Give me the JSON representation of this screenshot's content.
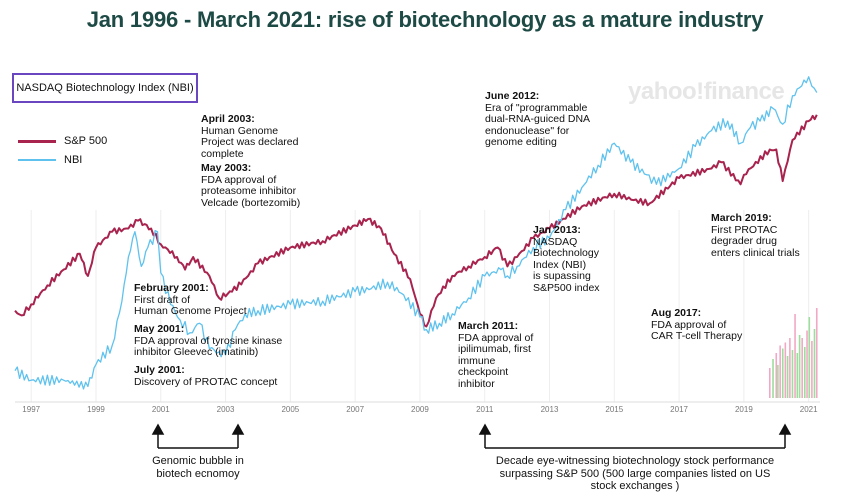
{
  "title": "Jan 1996 - March 2021: rise of biotechnology as a mature industry",
  "index_box": "NASDAQ Biotechnology Index (NBI)",
  "legend": [
    {
      "label": "S&P 500",
      "color": "#a8234e"
    },
    {
      "label": "NBI",
      "color": "#5fc2ee"
    }
  ],
  "watermark": "yahoo!finance",
  "annotations": [
    {
      "id": "april-2003",
      "heading": "April 2003:",
      "lines": [
        "Human Genome",
        "Project was declared",
        "complete"
      ]
    },
    {
      "id": "may-2003",
      "heading": "May 2003:",
      "lines": [
        "FDA approval of",
        "proteasome inhibitor",
        "Velcade (bortezomib)"
      ]
    },
    {
      "id": "feb-2001",
      "heading": "February 2001:",
      "lines": [
        "First draft of",
        "Human Genome Project"
      ]
    },
    {
      "id": "may-2001",
      "heading": "May 2001:",
      "lines": [
        "FDA approval of tyrosine kinase",
        "inhibitor Gleevec (imatinib)"
      ]
    },
    {
      "id": "july-2001",
      "heading": "July 2001:",
      "lines": [
        "Discovery of PROTAC concept"
      ]
    },
    {
      "id": "june-2012",
      "heading": "June 2012:",
      "lines": [
        "Era of \"programmable",
        "dual-RNA-guiced DNA",
        "endonuclease\" for",
        "genome editing"
      ]
    },
    {
      "id": "jan-2013",
      "heading": "Jan 2013:",
      "lines": [
        "NASDAQ",
        "Biotechnology",
        "Index (NBI)",
        "is supassing",
        "S&P500 index"
      ]
    },
    {
      "id": "march-2019",
      "heading": "March 2019:",
      "lines": [
        "First PROTAC",
        "degrader drug",
        "enters clinical trials"
      ]
    },
    {
      "id": "march-2011",
      "heading": "March 2011:",
      "lines": [
        "FDA approval of",
        "ipilimumab, first",
        "immune",
        "checkpoint",
        "inhibitor"
      ]
    },
    {
      "id": "aug-2017",
      "heading": "Aug 2017:",
      "lines": [
        "FDA approval of",
        "CAR T-cell Therapy"
      ]
    }
  ],
  "bottom_notes": {
    "left": [
      "Genomic bubble in",
      "biotech ecnomoy"
    ],
    "right": [
      "Decade eye-witnessing biotechnology stock performance",
      "surpassing S&P 500 (500 large companies listed on US",
      "stock exchanges )"
    ]
  },
  "chart_data": {
    "type": "line",
    "title": "Jan 1996 - March 2021: rise of biotechnology as a mature industry",
    "xlabel": "",
    "ylabel": "",
    "xlim": [
      1996.5,
      2021.35
    ],
    "ylim": [
      0,
      100
    ],
    "x_ticks": [
      1997,
      1999,
      2001,
      2003,
      2005,
      2007,
      2009,
      2011,
      2013,
      2015,
      2017,
      2019,
      2021
    ],
    "y_units": "relative level (axis not labeled)",
    "series": [
      {
        "name": "S&P 500",
        "color": "#a8234e",
        "x": [
          1996.5,
          1996.7,
          1997.0,
          1997.5,
          1998.0,
          1998.5,
          1998.75,
          1999.0,
          1999.5,
          2000.0,
          2000.3,
          2000.7,
          2001.0,
          2001.5,
          2001.75,
          2002.0,
          2002.5,
          2002.8,
          2003.2,
          2003.7,
          2004.0,
          2005.0,
          2006.0,
          2007.0,
          2007.4,
          2007.8,
          2008.2,
          2008.7,
          2009.0,
          2009.2,
          2009.5,
          2010.0,
          2010.5,
          2011.0,
          2011.4,
          2011.7,
          2012.0,
          2012.5,
          2013.0,
          2014.0,
          2015.0,
          2015.6,
          2016.1,
          2017.0,
          2018.0,
          2018.3,
          2018.9,
          2019.0,
          2019.8,
          2020.0,
          2020.2,
          2020.5,
          2021.0,
          2021.25
        ],
        "values": [
          27,
          25.5,
          29,
          35,
          40,
          45,
          38,
          47,
          52,
          53,
          55.5,
          53,
          48,
          44,
          40,
          44,
          38,
          31,
          33,
          38,
          42,
          47,
          49,
          54,
          56,
          53,
          45,
          37,
          26,
          22,
          31,
          38,
          41,
          44,
          47,
          41,
          44,
          50,
          53,
          60,
          64,
          62,
          61,
          69,
          72,
          74,
          67,
          70,
          78,
          78,
          68,
          81,
          87,
          89
        ]
      },
      {
        "name": "NBI",
        "color": "#5fc2ee",
        "x": [
          1996.5,
          1997.0,
          1998.0,
          1998.75,
          1999.0,
          1999.5,
          1999.8,
          2000.0,
          2000.2,
          2000.4,
          2000.6,
          2000.9,
          2001.0,
          2001.3,
          2001.6,
          2001.9,
          2002.2,
          2002.5,
          2002.8,
          2003.0,
          2003.3,
          2003.6,
          2004.0,
          2005.0,
          2006.0,
          2007.0,
          2007.5,
          2008.0,
          2008.5,
          2009.0,
          2009.2,
          2009.6,
          2010.0,
          2010.5,
          2011.0,
          2011.5,
          2011.7,
          2012.0,
          2012.5,
          2013.0,
          2013.5,
          2014.0,
          2014.5,
          2015.0,
          2015.5,
          2016.0,
          2016.3,
          2017.0,
          2017.5,
          2018.0,
          2018.5,
          2018.9,
          2019.2,
          2019.5,
          2019.9,
          2020.2,
          2020.5,
          2021.0,
          2021.1,
          2021.25
        ],
        "values": [
          8,
          5,
          5,
          3,
          10,
          16,
          30,
          44,
          52,
          41,
          47,
          52,
          39,
          29,
          24,
          20,
          23,
          15,
          14,
          13,
          21,
          26,
          27,
          29,
          30,
          33,
          34,
          36,
          32,
          25,
          21,
          23,
          26,
          31,
          38,
          40,
          38,
          41,
          47,
          50,
          59,
          66,
          73,
          80,
          74,
          70,
          67,
          72,
          79,
          84,
          87,
          80,
          85,
          87,
          91,
          86,
          95,
          101,
          98,
          96
        ]
      }
    ],
    "volume_bars": {
      "color_pos": "#9ddd9d",
      "color_neg": "#f2a8c4",
      "x": [
        2019.8,
        2019.9,
        2020.0,
        2020.05,
        2020.12,
        2020.2,
        2020.28,
        2020.35,
        2020.42,
        2020.5,
        2020.58,
        2020.65,
        2020.72,
        2020.8,
        2020.88,
        2020.95,
        2021.02,
        2021.1,
        2021.18,
        2021.25
      ],
      "values": [
        20,
        26,
        30,
        22,
        35,
        33,
        37,
        28,
        40,
        32,
        56,
        30,
        42,
        40,
        34,
        45,
        54,
        38,
        46,
        60
      ],
      "sign": [
        "neg",
        "pos",
        "neg",
        "pos",
        "neg",
        "pos",
        "neg",
        "pos",
        "neg",
        "pos",
        "neg",
        "pos",
        "pos",
        "neg",
        "pos",
        "neg",
        "pos",
        "neg",
        "pos",
        "neg"
      ]
    }
  }
}
